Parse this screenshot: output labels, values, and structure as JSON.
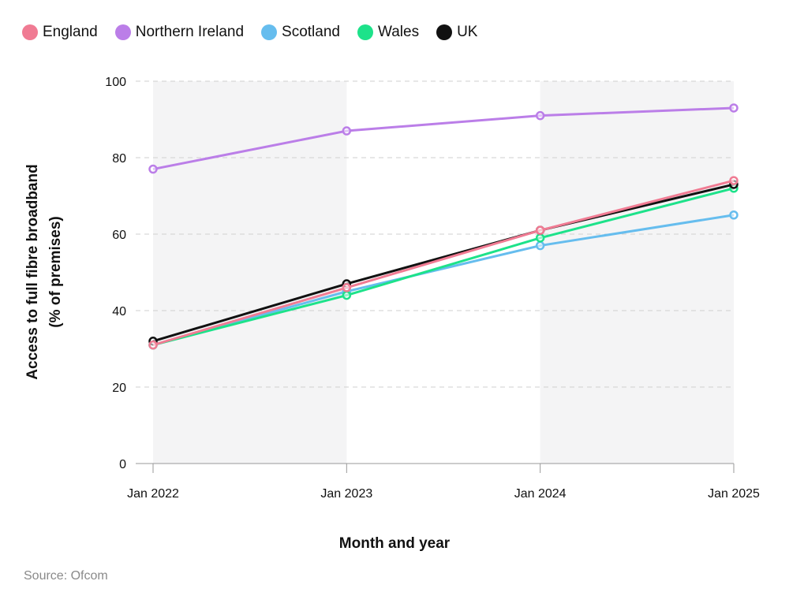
{
  "chart_data": {
    "type": "line",
    "title": "",
    "xlabel": "Month and year",
    "ylabel_lines": [
      "Access to full fibre broadband",
      "(% of premises)"
    ],
    "x": [
      "Jan 2022",
      "Jan 2023",
      "Jan 2024",
      "Jan 2025"
    ],
    "yticks": [
      0,
      20,
      40,
      60,
      80,
      100
    ],
    "ylim": [
      0,
      100
    ],
    "grid": true,
    "legend_position": "top-left",
    "series": [
      {
        "name": "England",
        "color": "#f07b93",
        "values": [
          31,
          46,
          61,
          74
        ]
      },
      {
        "name": "Northern Ireland",
        "color": "#bb7ee8",
        "values": [
          77,
          87,
          91,
          93
        ]
      },
      {
        "name": "Scotland",
        "color": "#66bdee",
        "values": [
          31,
          45,
          57,
          65
        ]
      },
      {
        "name": "Wales",
        "color": "#1de28a",
        "values": [
          31,
          44,
          59,
          72
        ]
      },
      {
        "name": "UK",
        "color": "#111111",
        "values": [
          32,
          47,
          61,
          73
        ]
      }
    ],
    "draw_order": [
      "Northern Ireland",
      "Scotland",
      "Wales",
      "UK",
      "England"
    ]
  },
  "source": "Source: Ofcom"
}
